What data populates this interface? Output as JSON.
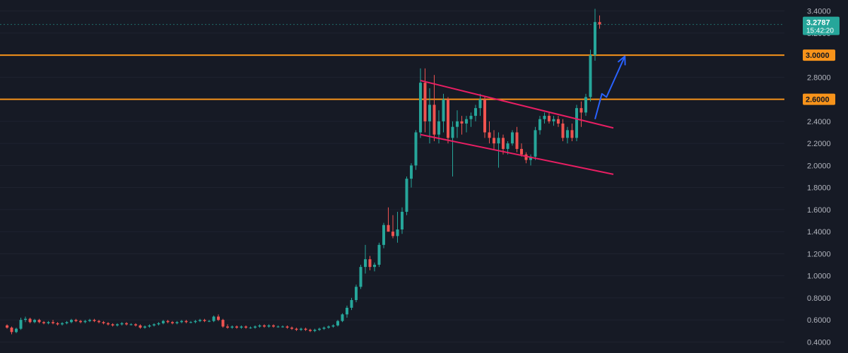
{
  "chart_data": {
    "type": "candlestick",
    "ylim": [
      0.3,
      3.5
    ],
    "y_ticks": [
      "0.4000",
      "0.6000",
      "0.8000",
      "1.0000",
      "1.2000",
      "1.4000",
      "1.6000",
      "1.8000",
      "2.0000",
      "2.2000",
      "2.4000",
      "2.6000",
      "2.8000",
      "3.0000",
      "3.2000",
      "3.4000"
    ],
    "colors": {
      "up": "#26a69a",
      "down": "#ef5350",
      "level": "#f7931a",
      "channel": "#e91e63",
      "arrow": "#2962ff",
      "background": "#161a25",
      "grid": "#1f2330"
    },
    "candles": [
      [
        0.55,
        0.56,
        0.52,
        0.53
      ],
      [
        0.53,
        0.54,
        0.47,
        0.49
      ],
      [
        0.49,
        0.53,
        0.48,
        0.52
      ],
      [
        0.52,
        0.62,
        0.51,
        0.6
      ],
      [
        0.6,
        0.63,
        0.58,
        0.61
      ],
      [
        0.61,
        0.62,
        0.57,
        0.58
      ],
      [
        0.58,
        0.61,
        0.57,
        0.6
      ],
      [
        0.6,
        0.61,
        0.57,
        0.58
      ],
      [
        0.58,
        0.59,
        0.56,
        0.57
      ],
      [
        0.57,
        0.59,
        0.56,
        0.58
      ],
      [
        0.58,
        0.6,
        0.56,
        0.57
      ],
      [
        0.57,
        0.58,
        0.55,
        0.56
      ],
      [
        0.56,
        0.58,
        0.55,
        0.57
      ],
      [
        0.57,
        0.59,
        0.56,
        0.58
      ],
      [
        0.58,
        0.61,
        0.57,
        0.6
      ],
      [
        0.6,
        0.61,
        0.58,
        0.59
      ],
      [
        0.59,
        0.6,
        0.57,
        0.58
      ],
      [
        0.58,
        0.6,
        0.57,
        0.59
      ],
      [
        0.59,
        0.61,
        0.58,
        0.6
      ],
      [
        0.6,
        0.61,
        0.58,
        0.59
      ],
      [
        0.59,
        0.6,
        0.57,
        0.58
      ],
      [
        0.58,
        0.59,
        0.56,
        0.57
      ],
      [
        0.57,
        0.58,
        0.55,
        0.56
      ],
      [
        0.56,
        0.57,
        0.54,
        0.55
      ],
      [
        0.55,
        0.57,
        0.54,
        0.56
      ],
      [
        0.56,
        0.58,
        0.55,
        0.57
      ],
      [
        0.57,
        0.58,
        0.55,
        0.56
      ],
      [
        0.56,
        0.57,
        0.55,
        0.56
      ],
      [
        0.56,
        0.57,
        0.54,
        0.55
      ],
      [
        0.55,
        0.56,
        0.52,
        0.53
      ],
      [
        0.53,
        0.55,
        0.52,
        0.54
      ],
      [
        0.54,
        0.56,
        0.53,
        0.55
      ],
      [
        0.55,
        0.57,
        0.54,
        0.56
      ],
      [
        0.56,
        0.58,
        0.55,
        0.57
      ],
      [
        0.57,
        0.6,
        0.56,
        0.59
      ],
      [
        0.59,
        0.6,
        0.57,
        0.58
      ],
      [
        0.58,
        0.59,
        0.56,
        0.57
      ],
      [
        0.57,
        0.59,
        0.56,
        0.58
      ],
      [
        0.58,
        0.6,
        0.57,
        0.59
      ],
      [
        0.59,
        0.6,
        0.57,
        0.58
      ],
      [
        0.58,
        0.59,
        0.57,
        0.58
      ],
      [
        0.58,
        0.6,
        0.57,
        0.59
      ],
      [
        0.59,
        0.61,
        0.58,
        0.6
      ],
      [
        0.6,
        0.61,
        0.58,
        0.59
      ],
      [
        0.59,
        0.6,
        0.58,
        0.59
      ],
      [
        0.59,
        0.64,
        0.58,
        0.63
      ],
      [
        0.63,
        0.65,
        0.59,
        0.6
      ],
      [
        0.6,
        0.61,
        0.53,
        0.54
      ],
      [
        0.54,
        0.56,
        0.52,
        0.53
      ],
      [
        0.53,
        0.55,
        0.52,
        0.54
      ],
      [
        0.54,
        0.55,
        0.52,
        0.53
      ],
      [
        0.53,
        0.55,
        0.52,
        0.54
      ],
      [
        0.54,
        0.55,
        0.52,
        0.53
      ],
      [
        0.53,
        0.54,
        0.52,
        0.53
      ],
      [
        0.53,
        0.55,
        0.52,
        0.54
      ],
      [
        0.54,
        0.56,
        0.53,
        0.55
      ],
      [
        0.55,
        0.56,
        0.53,
        0.54
      ],
      [
        0.54,
        0.56,
        0.53,
        0.55
      ],
      [
        0.55,
        0.56,
        0.53,
        0.54
      ],
      [
        0.54,
        0.55,
        0.53,
        0.54
      ],
      [
        0.54,
        0.55,
        0.53,
        0.54
      ],
      [
        0.54,
        0.55,
        0.52,
        0.53
      ],
      [
        0.53,
        0.54,
        0.51,
        0.52
      ],
      [
        0.52,
        0.53,
        0.5,
        0.51
      ],
      [
        0.51,
        0.53,
        0.5,
        0.52
      ],
      [
        0.52,
        0.53,
        0.5,
        0.51
      ],
      [
        0.51,
        0.52,
        0.49,
        0.5
      ],
      [
        0.5,
        0.52,
        0.49,
        0.51
      ],
      [
        0.51,
        0.53,
        0.5,
        0.52
      ],
      [
        0.52,
        0.54,
        0.51,
        0.53
      ],
      [
        0.53,
        0.55,
        0.52,
        0.54
      ],
      [
        0.54,
        0.56,
        0.53,
        0.55
      ],
      [
        0.55,
        0.6,
        0.54,
        0.59
      ],
      [
        0.59,
        0.66,
        0.58,
        0.65
      ],
      [
        0.65,
        0.73,
        0.62,
        0.71
      ],
      [
        0.71,
        0.8,
        0.69,
        0.78
      ],
      [
        0.78,
        0.92,
        0.76,
        0.9
      ],
      [
        0.9,
        1.1,
        0.88,
        1.08
      ],
      [
        1.08,
        1.28,
        1.02,
        1.15
      ],
      [
        1.15,
        1.18,
        1.05,
        1.08
      ],
      [
        1.08,
        1.12,
        1.04,
        1.1
      ],
      [
        1.1,
        1.3,
        1.08,
        1.28
      ],
      [
        1.28,
        1.48,
        1.25,
        1.46
      ],
      [
        1.46,
        1.62,
        1.4,
        1.4
      ],
      [
        1.4,
        1.55,
        1.34,
        1.36
      ],
      [
        1.36,
        1.58,
        1.3,
        1.42
      ],
      [
        1.42,
        1.62,
        1.38,
        1.58
      ],
      [
        1.58,
        1.9,
        1.55,
        1.88
      ],
      [
        1.88,
        2.02,
        1.8,
        2.0
      ],
      [
        2.0,
        2.32,
        1.96,
        2.3
      ],
      [
        2.3,
        2.88,
        2.25,
        2.75
      ],
      [
        2.75,
        2.88,
        2.3,
        2.4
      ],
      [
        2.4,
        2.7,
        2.2,
        2.55
      ],
      [
        2.55,
        2.82,
        2.22,
        2.28
      ],
      [
        2.28,
        2.5,
        2.2,
        2.4
      ],
      [
        2.4,
        2.65,
        2.3,
        2.6
      ],
      [
        2.6,
        2.62,
        2.2,
        2.25
      ],
      [
        2.25,
        2.4,
        1.9,
        2.35
      ],
      [
        2.35,
        2.5,
        2.25,
        2.4
      ],
      [
        2.4,
        2.45,
        2.28,
        2.38
      ],
      [
        2.38,
        2.45,
        2.3,
        2.42
      ],
      [
        2.42,
        2.48,
        2.35,
        2.45
      ],
      [
        2.45,
        2.55,
        2.4,
        2.52
      ],
      [
        2.52,
        2.65,
        2.45,
        2.6
      ],
      [
        2.6,
        2.62,
        2.25,
        2.3
      ],
      [
        2.3,
        2.4,
        2.2,
        2.25
      ],
      [
        2.25,
        2.32,
        2.15,
        2.2
      ],
      [
        2.2,
        2.3,
        1.98,
        2.25
      ],
      [
        2.25,
        2.28,
        2.1,
        2.15
      ],
      [
        2.15,
        2.22,
        2.1,
        2.2
      ],
      [
        2.2,
        2.32,
        2.18,
        2.3
      ],
      [
        2.3,
        2.35,
        2.12,
        2.15
      ],
      [
        2.15,
        2.2,
        2.08,
        2.1
      ],
      [
        2.1,
        2.12,
        2.02,
        2.05
      ],
      [
        2.05,
        2.1,
        2.0,
        2.08
      ],
      [
        2.08,
        2.35,
        2.05,
        2.32
      ],
      [
        2.32,
        2.45,
        2.28,
        2.42
      ],
      [
        2.42,
        2.48,
        2.38,
        2.45
      ],
      [
        2.45,
        2.48,
        2.38,
        2.4
      ],
      [
        2.4,
        2.45,
        2.36,
        2.42
      ],
      [
        2.42,
        2.45,
        2.35,
        2.38
      ],
      [
        2.38,
        2.42,
        2.22,
        2.25
      ],
      [
        2.25,
        2.35,
        2.2,
        2.32
      ],
      [
        2.32,
        2.38,
        2.22,
        2.25
      ],
      [
        2.25,
        2.55,
        2.22,
        2.52
      ],
      [
        2.52,
        2.58,
        2.35,
        2.48
      ],
      [
        2.48,
        2.65,
        2.45,
        2.62
      ],
      [
        2.62,
        3.05,
        2.58,
        3.0
      ],
      [
        3.0,
        3.42,
        2.95,
        3.3
      ],
      [
        3.3,
        3.36,
        3.24,
        3.2787
      ]
    ],
    "levels": [
      {
        "label": "3.0000",
        "value": 3.0
      },
      {
        "label": "2.6000",
        "value": 2.6
      }
    ],
    "channel_upper": {
      "from": {
        "index": 90,
        "value": 2.77
      },
      "to": {
        "index": 132,
        "value": 2.34
      }
    },
    "channel_lower": {
      "from": {
        "index": 90,
        "value": 2.28
      },
      "to": {
        "index": 132,
        "value": 1.92
      }
    },
    "projection_arrow": [
      {
        "index": 128,
        "value": 2.42
      },
      {
        "index": 129.5,
        "value": 2.65
      },
      {
        "index": 130.5,
        "value": 2.62
      },
      {
        "index": 134.5,
        "value": 2.99
      }
    ],
    "last_price": {
      "label": "3.2787",
      "value": 3.2787,
      "countdown": "15:42:20"
    }
  }
}
